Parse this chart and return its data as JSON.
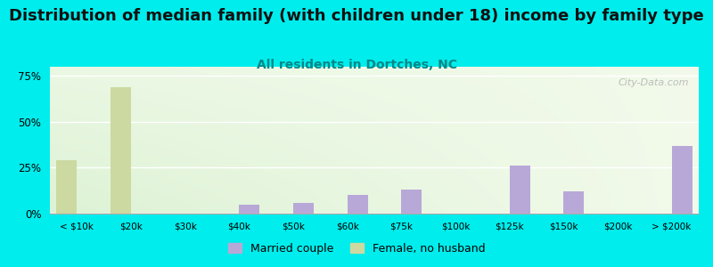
{
  "title": "Distribution of median family (with children under 18) income by family type",
  "subtitle": "All residents in Dortches, NC",
  "categories": [
    "< $10k",
    "$20k",
    "$30k",
    "$40k",
    "$50k",
    "$60k",
    "$75k",
    "$100k",
    "$125k",
    "$150k",
    "$200k",
    "> $200k"
  ],
  "married_couple": [
    0,
    0,
    0,
    5,
    6,
    10,
    13,
    0,
    26,
    12,
    0,
    37
  ],
  "female_no_husband": [
    29,
    69,
    0,
    0,
    0,
    0,
    0,
    0,
    0,
    0,
    0,
    0
  ],
  "married_color": "#b8a8d8",
  "female_color": "#ccd9a0",
  "background_color": "#00eded",
  "title_fontsize": 13,
  "subtitle_fontsize": 10,
  "subtitle_color": "#008888",
  "ytick_vals": [
    0,
    25,
    50,
    75
  ],
  "ylabel_ticks": [
    "0%",
    "25%",
    "50%",
    "75%"
  ],
  "ylim": [
    0,
    80
  ],
  "bar_width": 0.38,
  "watermark": "City-Data.com"
}
